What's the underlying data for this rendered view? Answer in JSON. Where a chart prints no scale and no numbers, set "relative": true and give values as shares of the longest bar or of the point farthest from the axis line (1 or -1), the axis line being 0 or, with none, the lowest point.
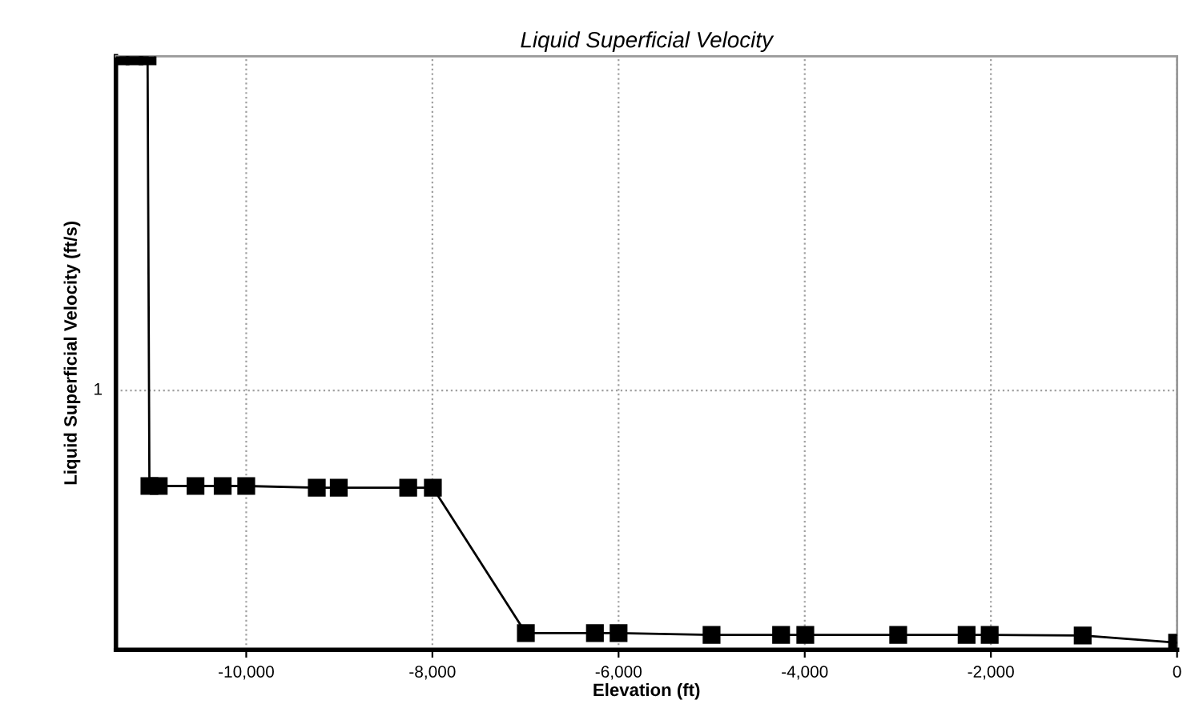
{
  "chart_data": {
    "type": "line",
    "title": "Liquid Superficial Velocity",
    "xlabel": "Elevation (ft)",
    "ylabel": "Liquid Superficial Velocity (ft/s)",
    "relative": true,
    "xlim": [
      -11400,
      0
    ],
    "xticks": [
      {
        "value": -10000,
        "label": "-10,000"
      },
      {
        "value": -8000,
        "label": "-8,000"
      },
      {
        "value": -6000,
        "label": "-6,000"
      },
      {
        "value": -4000,
        "label": "-4,000"
      },
      {
        "value": -2000,
        "label": "-2,000"
      },
      0
    ],
    "grid": "x",
    "marker": "square",
    "line_style": "solid",
    "annotations": [
      "1"
    ],
    "ref_lines": [
      {
        "axis": "y",
        "value": 0.437,
        "color": "#a0a0a0",
        "line_style": "dotted"
      }
    ],
    "series": [
      {
        "color": "#000000",
        "x": [
          -11350,
          -11200,
          -11060,
          -11040,
          -10940,
          -10545,
          -10253,
          -10000,
          -9242,
          -9006,
          -8260,
          -7995,
          -6996,
          -6254,
          -6000,
          -5001,
          -4254,
          -3994,
          -2996,
          -2261,
          -2013,
          -1014,
          0
        ],
        "values": [
          1.0,
          1.0,
          1.0,
          0.276,
          0.276,
          0.276,
          0.276,
          0.276,
          0.273,
          0.273,
          0.273,
          0.273,
          0.028,
          0.028,
          0.028,
          0.025,
          0.025,
          0.025,
          0.025,
          0.025,
          0.025,
          0.024,
          0.012
        ]
      }
    ]
  }
}
